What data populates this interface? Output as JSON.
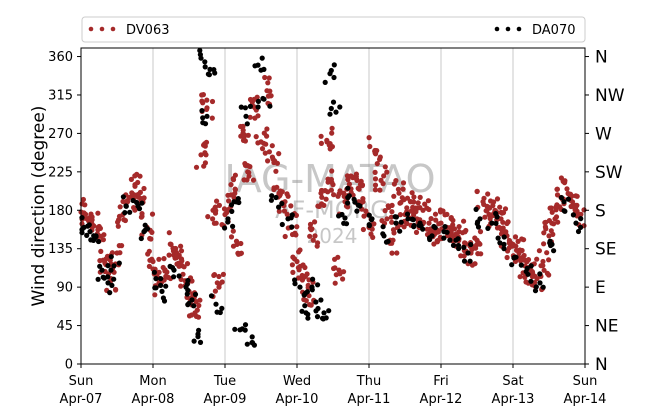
{
  "chart_data": {
    "type": "scatter",
    "ylabel": "Wind direction (degree)",
    "ylim": [
      0,
      370
    ],
    "yticks": [
      0,
      45,
      90,
      135,
      180,
      225,
      270,
      315,
      360
    ],
    "compass_ticks": [
      {
        "value": 0,
        "label": "N"
      },
      {
        "value": 45,
        "label": "NE"
      },
      {
        "value": 90,
        "label": "E"
      },
      {
        "value": 135,
        "label": "SE"
      },
      {
        "value": 180,
        "label": "S"
      },
      {
        "value": 225,
        "label": "SW"
      },
      {
        "value": 270,
        "label": "W"
      },
      {
        "value": 315,
        "label": "NW"
      },
      {
        "value": 360,
        "label": "N"
      }
    ],
    "xlim": [
      "2024-04-07T00:00",
      "2024-04-14T00:00"
    ],
    "xticks": [
      {
        "date": "2024-04-07",
        "day": "Sun",
        "label": "Apr-07"
      },
      {
        "date": "2024-04-08",
        "day": "Mon",
        "label": "Apr-08"
      },
      {
        "date": "2024-04-09",
        "day": "Tue",
        "label": "Apr-09"
      },
      {
        "date": "2024-04-10",
        "day": "Wed",
        "label": "Apr-10"
      },
      {
        "date": "2024-04-11",
        "day": "Thu",
        "label": "Apr-11"
      },
      {
        "date": "2024-04-12",
        "day": "Fri",
        "label": "Apr-12"
      },
      {
        "date": "2024-04-13",
        "day": "Sat",
        "label": "Apr-13"
      },
      {
        "date": "2024-04-14",
        "day": "Sun",
        "label": "Apr-14"
      }
    ],
    "grid": "vertical",
    "legend_placement": "top",
    "watermark": [
      "IAG-MATAO",
      "AF-MORG",
      "2024"
    ],
    "series": [
      {
        "name": "DV063",
        "color": "#a52a2a",
        "points": [
          [
            "2024-04-07T00:00",
            178
          ],
          [
            "2024-04-07T02:00",
            170
          ],
          [
            "2024-04-07T04:00",
            162
          ],
          [
            "2024-04-07T06:00",
            150
          ],
          [
            "2024-04-07T08:00",
            118
          ],
          [
            "2024-04-07T10:00",
            100
          ],
          [
            "2024-04-07T12:00",
            130
          ],
          [
            "2024-04-07T14:00",
            175
          ],
          [
            "2024-04-07T16:00",
            195
          ],
          [
            "2024-04-07T18:00",
            210
          ],
          [
            "2024-04-07T20:00",
            190
          ],
          [
            "2024-04-07T22:00",
            160
          ],
          [
            "2024-04-08T00:00",
            120
          ],
          [
            "2024-04-08T02:00",
            95
          ],
          [
            "2024-04-08T04:00",
            110
          ],
          [
            "2024-04-08T06:00",
            140
          ],
          [
            "2024-04-08T08:00",
            125
          ],
          [
            "2024-04-08T10:00",
            105
          ],
          [
            "2024-04-08T12:00",
            85
          ],
          [
            "2024-04-08T14:00",
            60
          ],
          [
            "2024-04-08T16:00",
            245
          ],
          [
            "2024-04-08T18:00",
            300
          ],
          [
            "2024-04-08T20:00",
            180
          ],
          [
            "2024-04-08T22:00",
            90
          ],
          [
            "2024-04-09T00:00",
            175
          ],
          [
            "2024-04-09T02:00",
            210
          ],
          [
            "2024-04-09T04:00",
            140
          ],
          [
            "2024-04-09T06:00",
            270
          ],
          [
            "2024-04-09T08:00",
            220
          ],
          [
            "2024-04-09T10:00",
            300
          ],
          [
            "2024-04-09T12:00",
            260
          ],
          [
            "2024-04-09T14:00",
            320
          ],
          [
            "2024-04-09T16:00",
            240
          ],
          [
            "2024-04-09T18:00",
            200
          ],
          [
            "2024-04-09T20:00",
            190
          ],
          [
            "2024-04-09T22:00",
            160
          ],
          [
            "2024-04-10T00:00",
            120
          ],
          [
            "2024-04-10T02:00",
            100
          ],
          [
            "2024-04-10T04:00",
            80
          ],
          [
            "2024-04-10T06:00",
            150
          ],
          [
            "2024-04-10T08:00",
            200
          ],
          [
            "2024-04-10T10:00",
            260
          ],
          [
            "2024-04-10T12:00",
            210
          ],
          [
            "2024-04-10T14:00",
            110
          ],
          [
            "2024-04-10T16:00",
            190
          ],
          [
            "2024-04-10T18:00",
            205
          ],
          [
            "2024-04-10T20:00",
            215
          ],
          [
            "2024-04-10T22:00",
            190
          ],
          [
            "2024-04-11T00:00",
            160
          ],
          [
            "2024-04-11T02:00",
            250
          ],
          [
            "2024-04-11T04:00",
            215
          ],
          [
            "2024-04-11T06:00",
            170
          ],
          [
            "2024-04-11T08:00",
            145
          ],
          [
            "2024-04-11T10:00",
            200
          ],
          [
            "2024-04-11T12:00",
            175
          ],
          [
            "2024-04-11T14:00",
            190
          ],
          [
            "2024-04-11T16:00",
            170
          ],
          [
            "2024-04-11T18:00",
            180
          ],
          [
            "2024-04-11T20:00",
            165
          ],
          [
            "2024-04-11T22:00",
            155
          ],
          [
            "2024-04-12T00:00",
            165
          ],
          [
            "2024-04-12T02:00",
            160
          ],
          [
            "2024-04-12T04:00",
            150
          ],
          [
            "2024-04-12T06:00",
            155
          ],
          [
            "2024-04-12T08:00",
            140
          ],
          [
            "2024-04-12T10:00",
            130
          ],
          [
            "2024-04-12T12:00",
            145
          ],
          [
            "2024-04-12T14:00",
            190
          ],
          [
            "2024-04-12T16:00",
            175
          ],
          [
            "2024-04-12T18:00",
            180
          ],
          [
            "2024-04-12T20:00",
            170
          ],
          [
            "2024-04-12T22:00",
            150
          ],
          [
            "2024-04-13T00:00",
            140
          ],
          [
            "2024-04-13T02:00",
            130
          ],
          [
            "2024-04-13T04:00",
            115
          ],
          [
            "2024-04-13T06:00",
            110
          ],
          [
            "2024-04-13T08:00",
            100
          ],
          [
            "2024-04-13T10:00",
            120
          ],
          [
            "2024-04-13T12:00",
            150
          ],
          [
            "2024-04-13T14:00",
            170
          ],
          [
            "2024-04-13T16:00",
            195
          ],
          [
            "2024-04-13T18:00",
            205
          ],
          [
            "2024-04-13T20:00",
            185
          ],
          [
            "2024-04-13T22:00",
            175
          ]
        ]
      },
      {
        "name": "DA070",
        "color": "#000000",
        "points": [
          [
            "2024-04-07T01:00",
            160
          ],
          [
            "2024-04-07T03:00",
            155
          ],
          [
            "2024-04-07T05:00",
            150
          ],
          [
            "2024-04-07T07:00",
            110
          ],
          [
            "2024-04-07T09:00",
            95
          ],
          [
            "2024-04-07T11:00",
            115
          ],
          [
            "2024-04-07T15:00",
            185
          ],
          [
            "2024-04-07T19:00",
            185
          ],
          [
            "2024-04-07T21:00",
            155
          ],
          [
            "2024-04-08T01:00",
            100
          ],
          [
            "2024-04-08T03:00",
            85
          ],
          [
            "2024-04-08T07:00",
            110
          ],
          [
            "2024-04-08T11:00",
            90
          ],
          [
            "2024-04-08T13:00",
            75
          ],
          [
            "2024-04-08T15:00",
            35
          ],
          [
            "2024-04-08T16:00",
            358
          ],
          [
            "2024-04-08T18:00",
            290
          ],
          [
            "2024-04-08T19:00",
            345
          ],
          [
            "2024-04-08T21:00",
            70
          ],
          [
            "2024-04-09T01:00",
            170
          ],
          [
            "2024-04-09T03:00",
            190
          ],
          [
            "2024-04-09T05:00",
            40
          ],
          [
            "2024-04-09T07:00",
            290
          ],
          [
            "2024-04-09T09:00",
            25
          ],
          [
            "2024-04-09T11:00",
            350
          ],
          [
            "2024-04-09T13:00",
            310
          ],
          [
            "2024-04-09T17:00",
            195
          ],
          [
            "2024-04-09T21:00",
            170
          ],
          [
            "2024-04-10T01:00",
            90
          ],
          [
            "2024-04-10T03:00",
            60
          ],
          [
            "2024-04-10T05:00",
            90
          ],
          [
            "2024-04-10T07:00",
            65
          ],
          [
            "2024-04-10T09:00",
            60
          ],
          [
            "2024-04-10T11:00",
            340
          ],
          [
            "2024-04-10T13:00",
            295
          ],
          [
            "2024-04-10T15:00",
            175
          ],
          [
            "2024-04-10T17:00",
            195
          ],
          [
            "2024-04-10T21:00",
            185
          ],
          [
            "2024-04-11T01:00",
            170
          ],
          [
            "2024-04-11T05:00",
            150
          ],
          [
            "2024-04-11T09:00",
            165
          ],
          [
            "2024-04-11T13:00",
            170
          ],
          [
            "2024-04-11T17:00",
            165
          ],
          [
            "2024-04-11T21:00",
            150
          ],
          [
            "2024-04-12T01:00",
            155
          ],
          [
            "2024-04-12T05:00",
            145
          ],
          [
            "2024-04-12T09:00",
            130
          ],
          [
            "2024-04-12T13:00",
            170
          ],
          [
            "2024-04-12T17:00",
            165
          ],
          [
            "2024-04-12T21:00",
            140
          ],
          [
            "2024-04-13T01:00",
            125
          ],
          [
            "2024-04-13T05:00",
            105
          ],
          [
            "2024-04-13T09:00",
            95
          ],
          [
            "2024-04-13T13:00",
            140
          ],
          [
            "2024-04-13T17:00",
            190
          ],
          [
            "2024-04-13T21:00",
            165
          ]
        ]
      }
    ]
  }
}
